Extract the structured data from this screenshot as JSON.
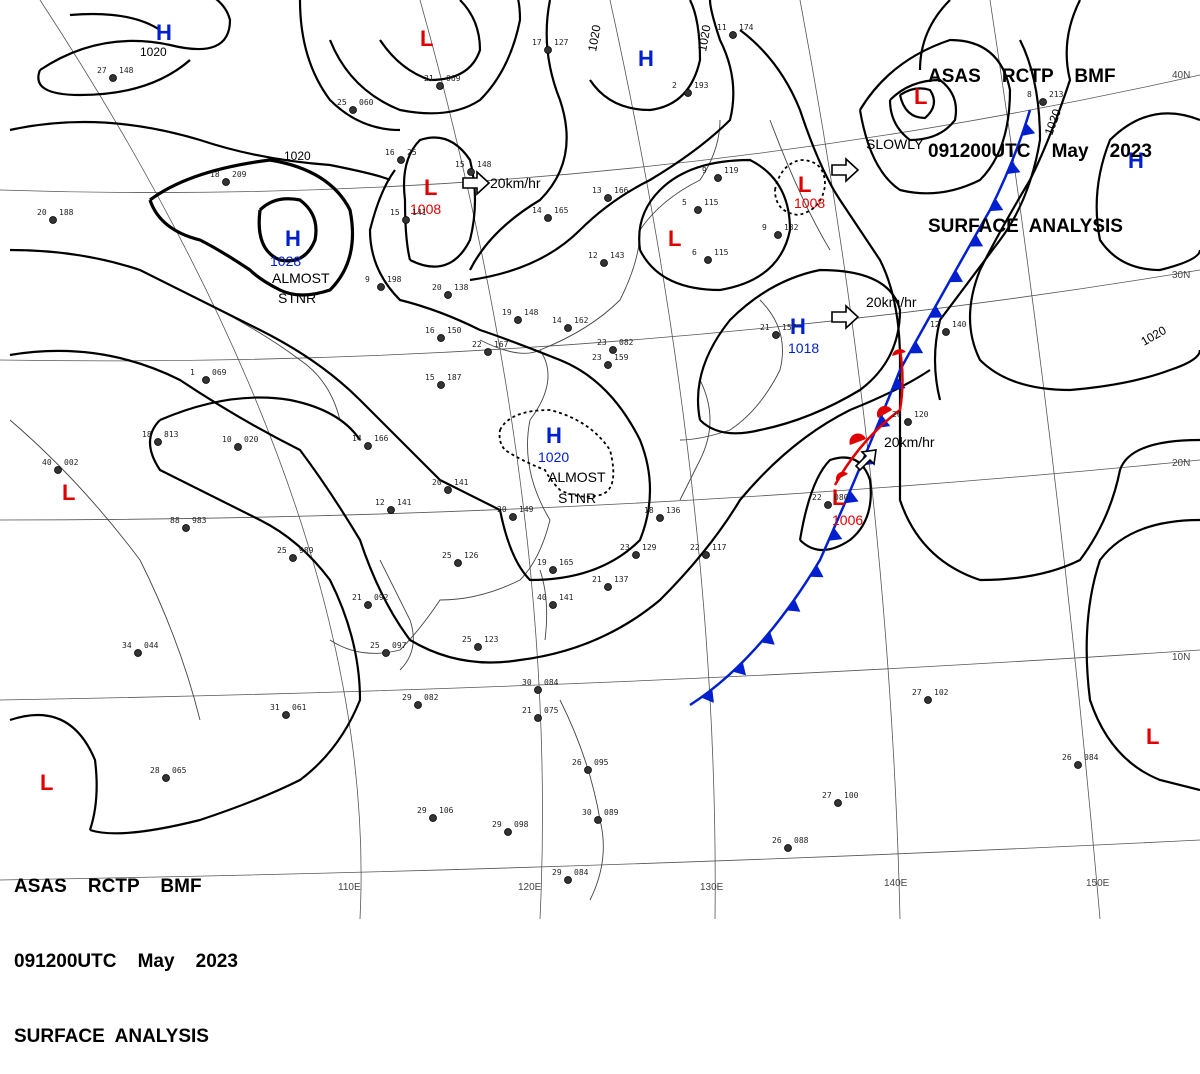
{
  "header_top": {
    "line1": "ASAS    RCTP    BMF",
    "line2": "091200UTC    May    2023",
    "line3": "SURFACE  ANALYSIS"
  },
  "header_bottom": {
    "line1": "ASAS    RCTP    BMF",
    "line2": "091200UTC    May    2023",
    "line3": "SURFACE  ANALYSIS"
  },
  "systems": {
    "h_nw": {
      "letter": "H",
      "pressure": "1020"
    },
    "h_mongolia": {
      "letter": "H",
      "pressure": "1028",
      "note1": "ALMOST",
      "note2": "STNR"
    },
    "h_china": {
      "letter": "H",
      "pressure": "1020",
      "note1": "ALMOST",
      "note2": "STNR"
    },
    "h_japan_sea": {
      "letter": "H",
      "pressure": "1018",
      "motion": "20km/hr"
    },
    "h_north": {
      "letter": "H"
    },
    "h_east": {
      "letter": "H"
    },
    "l_north": {
      "letter": "L"
    },
    "l_manchuria": {
      "letter": "L",
      "pressure": "1008",
      "motion": "20km/hr"
    },
    "l_korea": {
      "letter": "L"
    },
    "l_okhotsk": {
      "letter": "L",
      "pressure": "1008"
    },
    "l_kuril": {
      "letter": "L",
      "motion": "SLOWLY"
    },
    "l_front": {
      "letter": "L",
      "pressure": "1006",
      "motion": "20km/hr"
    },
    "l_west": {
      "letter": "L"
    },
    "l_southwest": {
      "letter": "L"
    },
    "l_southeast": {
      "letter": "L"
    }
  },
  "isobar_labels": {
    "a": "1020",
    "b": "1020",
    "c": "1020",
    "d": "1020",
    "e": "1020",
    "f": "1020"
  },
  "geo_labels": {
    "lon": [
      "110E",
      "120E",
      "130E",
      "140E",
      "150E"
    ],
    "lat": [
      "40N",
      "30N",
      "20N",
      "10N"
    ]
  },
  "stations": [
    {
      "id": "s1",
      "t": "27",
      "v": "148"
    },
    {
      "id": "s2",
      "t": "25",
      "v": "060"
    },
    {
      "id": "s3",
      "t": "21",
      "v": "069"
    },
    {
      "id": "s4",
      "t": "16",
      "v": "25"
    },
    {
      "id": "s5",
      "t": "18",
      "v": "209"
    },
    {
      "id": "s6",
      "t": "20",
      "v": "188"
    },
    {
      "id": "s7",
      "t": "15",
      "v": "148"
    },
    {
      "id": "s8",
      "t": "15",
      "v": "141"
    },
    {
      "id": "s9",
      "t": "14",
      "v": "165"
    },
    {
      "id": "s10",
      "t": "13",
      "v": "166"
    },
    {
      "id": "s11",
      "t": "9",
      "v": "119"
    },
    {
      "id": "s12",
      "t": "5",
      "v": "115"
    },
    {
      "id": "s13",
      "t": "12",
      "v": "143"
    },
    {
      "id": "s14",
      "t": "6",
      "v": "115"
    },
    {
      "id": "s15",
      "t": "9",
      "v": "198"
    },
    {
      "id": "s16",
      "t": "20",
      "v": "138"
    },
    {
      "id": "s17",
      "t": "19",
      "v": "148"
    },
    {
      "id": "s18",
      "t": "14",
      "v": "162"
    },
    {
      "id": "s19",
      "t": "16",
      "v": "150"
    },
    {
      "id": "s20",
      "t": "22",
      "v": "167"
    },
    {
      "id": "s21",
      "t": "23",
      "v": "082"
    },
    {
      "id": "s22",
      "t": "23",
      "v": "159"
    },
    {
      "id": "s23",
      "t": "15",
      "v": "187"
    },
    {
      "id": "s24",
      "t": "1",
      "v": "069"
    },
    {
      "id": "s25",
      "t": "18",
      "v": "813"
    },
    {
      "id": "s26",
      "t": "10",
      "v": "020"
    },
    {
      "id": "s27",
      "t": "14",
      "v": "166"
    },
    {
      "id": "s28",
      "t": "40",
      "v": "002"
    },
    {
      "id": "s29",
      "t": "20",
      "v": "141"
    },
    {
      "id": "s30",
      "t": "12",
      "v": "141"
    },
    {
      "id": "s31",
      "t": "20",
      "v": "149"
    },
    {
      "id": "s32",
      "t": "25",
      "v": "989"
    },
    {
      "id": "s33",
      "t": "88",
      "v": "983"
    },
    {
      "id": "s34",
      "t": "25",
      "v": "126"
    },
    {
      "id": "s35",
      "t": "19",
      "v": "165"
    },
    {
      "id": "s36",
      "t": "21",
      "v": "137"
    },
    {
      "id": "s37",
      "t": "23",
      "v": "129"
    },
    {
      "id": "s38",
      "t": "18",
      "v": "136"
    },
    {
      "id": "s39",
      "t": "22",
      "v": "117"
    },
    {
      "id": "s40",
      "t": "21",
      "v": "092"
    },
    {
      "id": "s41",
      "t": "25",
      "v": "097"
    },
    {
      "id": "s42",
      "t": "40",
      "v": "141"
    },
    {
      "id": "s43",
      "t": "25",
      "v": "123"
    },
    {
      "id": "s44",
      "t": "34",
      "v": "044"
    },
    {
      "id": "s45",
      "t": "29",
      "v": "082"
    },
    {
      "id": "s46",
      "t": "31",
      "v": "061"
    },
    {
      "id": "s47",
      "t": "30",
      "v": "084"
    },
    {
      "id": "s48",
      "t": "21",
      "v": "075"
    },
    {
      "id": "s49",
      "t": "28",
      "v": "065"
    },
    {
      "id": "s50",
      "t": "29",
      "v": "106"
    },
    {
      "id": "s51",
      "t": "29",
      "v": "098"
    },
    {
      "id": "s52",
      "t": "30",
      "v": "089"
    },
    {
      "id": "s53",
      "t": "29",
      "v": "084"
    },
    {
      "id": "s54",
      "t": "26",
      "v": "095"
    },
    {
      "id": "s55",
      "t": "26",
      "v": "088"
    },
    {
      "id": "s56",
      "t": "27",
      "v": "100"
    },
    {
      "id": "s57",
      "t": "27",
      "v": "102"
    },
    {
      "id": "s58",
      "t": "26",
      "v": "084"
    },
    {
      "id": "s59",
      "t": "22",
      "v": "080"
    },
    {
      "id": "s60",
      "t": "26",
      "v": "120"
    },
    {
      "id": "s61",
      "t": "21",
      "v": "157"
    },
    {
      "id": "s62",
      "t": "12",
      "v": "140"
    },
    {
      "id": "s63",
      "t": "11",
      "v": "174"
    },
    {
      "id": "s64",
      "t": "2",
      "v": "193"
    },
    {
      "id": "s65",
      "t": "17",
      "v": "127"
    },
    {
      "id": "s66",
      "t": "9",
      "v": "132"
    },
    {
      "id": "s67",
      "t": "8",
      "v": "213"
    }
  ]
}
